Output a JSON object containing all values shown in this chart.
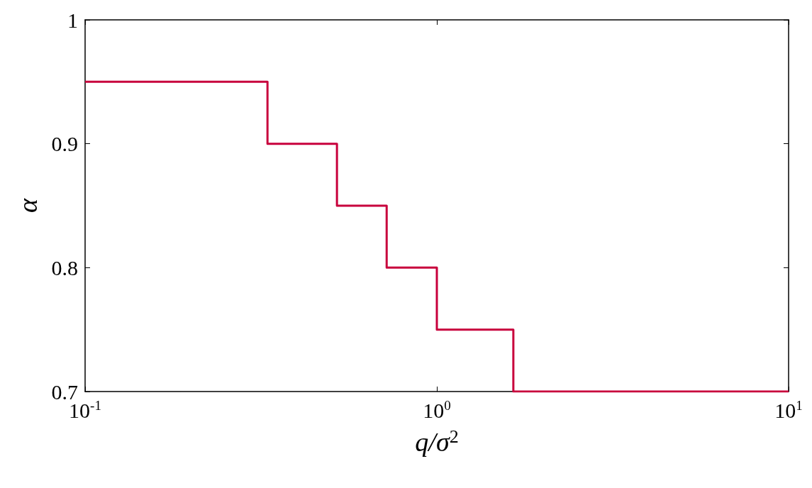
{
  "chart_data": {
    "type": "step",
    "xlabel": "q/σ$^{2}$",
    "ylabel": "α",
    "x": [
      0.1,
      0.33,
      0.52,
      0.72,
      1.0,
      1.65,
      10
    ],
    "series": [
      {
        "color": "#c8003c",
        "values": [
          0.95,
          0.9,
          0.85,
          0.8,
          0.75,
          0.7,
          0.7
        ]
      }
    ],
    "log": "x",
    "xlim": [
      0.1,
      10
    ],
    "xticks": [
      {
        "value": 0.1,
        "label": "10$^{-1}$"
      },
      {
        "value": 1,
        "label": "10$^{0}$"
      },
      {
        "value": 10,
        "label": "10$^{1}$"
      }
    ],
    "ylim": [
      0.7,
      1
    ],
    "yticks": [
      0.7,
      0.8,
      0.9,
      1
    ],
    "grid": false,
    "marker": "none",
    "line_style": "solid"
  }
}
